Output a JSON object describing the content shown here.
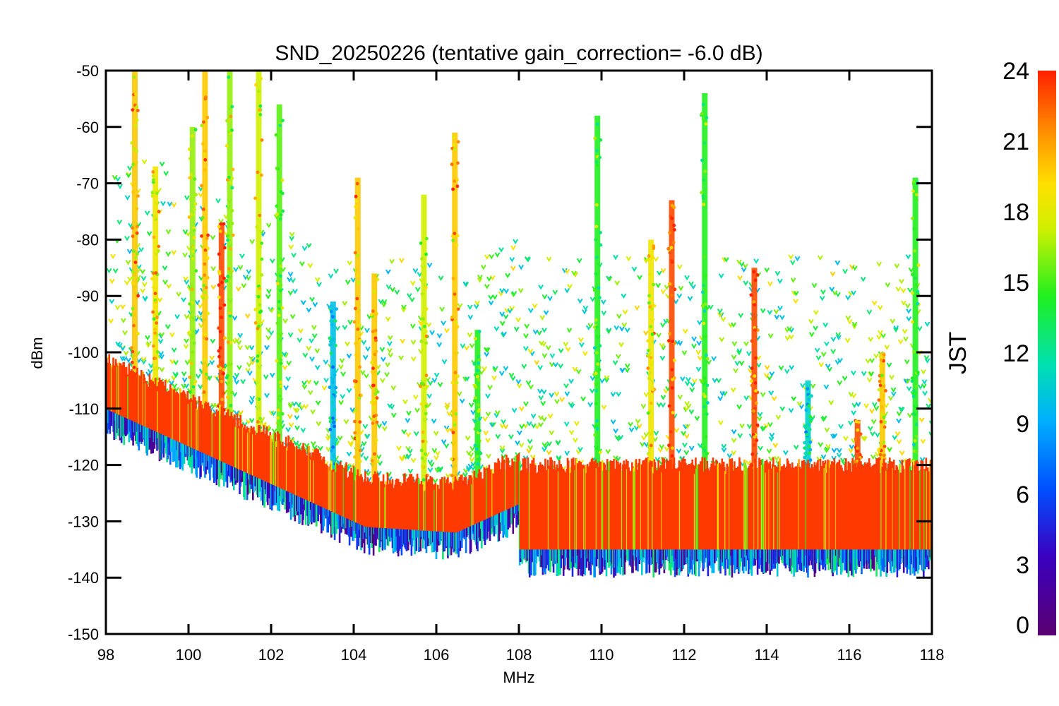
{
  "chart_data": {
    "type": "scatter",
    "title": "SND_20250226 (tentative gain_correction= -6.0 dB)",
    "xlabel": "MHz",
    "ylabel": "dBm",
    "xlim": [
      98,
      118
    ],
    "ylim": [
      -150,
      -50
    ],
    "x_ticks": [
      "98",
      "100",
      "102",
      "104",
      "106",
      "108",
      "110",
      "112",
      "114",
      "116",
      "118"
    ],
    "y_ticks": [
      "-50",
      "-60",
      "-70",
      "-80",
      "-90",
      "-100",
      "-110",
      "-120",
      "-130",
      "-140",
      "-150"
    ],
    "colorbar": {
      "label": "JST",
      "range": [
        0,
        24
      ],
      "ticks": [
        "24",
        "21",
        "18",
        "15",
        "12",
        "9",
        "6",
        "3",
        "0"
      ],
      "colormap": "rainbow (purple 0 → blue → cyan → green → yellow → orange → red 24)"
    },
    "marker": "asterisk",
    "noise_floor_segments": [
      {
        "x": [
          98,
          104.3
        ],
        "y": [
          -106,
          -127
        ]
      },
      {
        "x": [
          104.3,
          106.5
        ],
        "y": [
          -127,
          -128
        ]
      },
      {
        "x": [
          106.5,
          108
        ],
        "y": [
          -128,
          -123
        ]
      },
      {
        "x": [
          108,
          118
        ],
        "y": [
          -127,
          -127
        ]
      }
    ],
    "strong_signals": [
      {
        "x": 98.7,
        "peak": -50,
        "jst": 20
      },
      {
        "x": 99.2,
        "peak": -67,
        "jst": 19
      },
      {
        "x": 100.1,
        "peak": -60,
        "jst": 17
      },
      {
        "x": 100.4,
        "peak": -50,
        "jst": 20
      },
      {
        "x": 100.8,
        "peak": -77,
        "jst": 23
      },
      {
        "x": 101.0,
        "peak": -50,
        "jst": 17
      },
      {
        "x": 101.7,
        "peak": -50,
        "jst": 18
      },
      {
        "x": 102.2,
        "peak": -56,
        "jst": 16
      },
      {
        "x": 103.5,
        "peak": -91,
        "jst": 10
      },
      {
        "x": 104.1,
        "peak": -69,
        "jst": 20
      },
      {
        "x": 104.5,
        "peak": -86,
        "jst": 20
      },
      {
        "x": 105.7,
        "peak": -72,
        "jst": 18
      },
      {
        "x": 106.45,
        "peak": -61,
        "jst": 20
      },
      {
        "x": 107.0,
        "peak": -96,
        "jst": 15
      },
      {
        "x": 109.9,
        "peak": -58,
        "jst": 15
      },
      {
        "x": 111.2,
        "peak": -80,
        "jst": 19
      },
      {
        "x": 111.7,
        "peak": -73,
        "jst": 23
      },
      {
        "x": 112.5,
        "peak": -54,
        "jst": 15
      },
      {
        "x": 113.7,
        "peak": -85,
        "jst": 23
      },
      {
        "x": 115.0,
        "peak": -105,
        "jst": 11
      },
      {
        "x": 116.2,
        "peak": -112,
        "jst": 23
      },
      {
        "x": 116.8,
        "peak": -100,
        "jst": 20
      },
      {
        "x": 117.6,
        "peak": -69,
        "jst": 15
      }
    ]
  }
}
